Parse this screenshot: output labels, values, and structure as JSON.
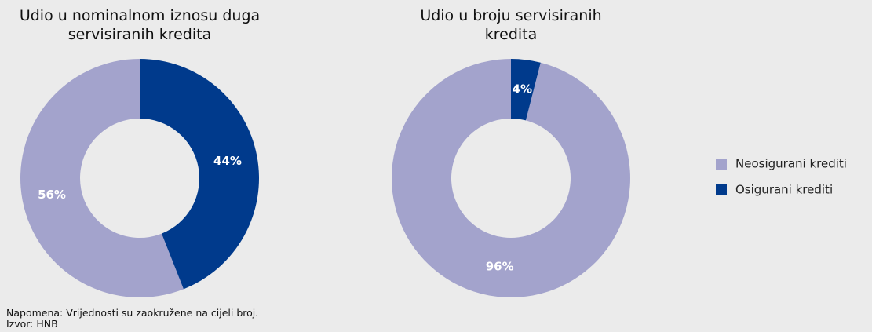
{
  "chart_data": [
    {
      "type": "pie",
      "title": "Udio u nominalnom iznosu duga servisiranih kredita",
      "categories": [
        "Neosigurani krediti",
        "Osigurani krediti"
      ],
      "values": [
        56,
        44
      ],
      "value_labels": [
        "56%",
        "44%"
      ],
      "colors": [
        "#a3a3cc",
        "#003a8c"
      ]
    },
    {
      "type": "pie",
      "title": "Udio u broju servisiranih kredita",
      "categories": [
        "Neosigurani krediti",
        "Osigurani krediti"
      ],
      "values": [
        96,
        4
      ],
      "value_labels": [
        "96%",
        "4%"
      ],
      "colors": [
        "#a3a3cc",
        "#003a8c"
      ]
    }
  ],
  "notes": [
    "Napomena: Vrijednosti su zaokružene na cijeli broj.",
    "Izvor: HNB"
  ]
}
